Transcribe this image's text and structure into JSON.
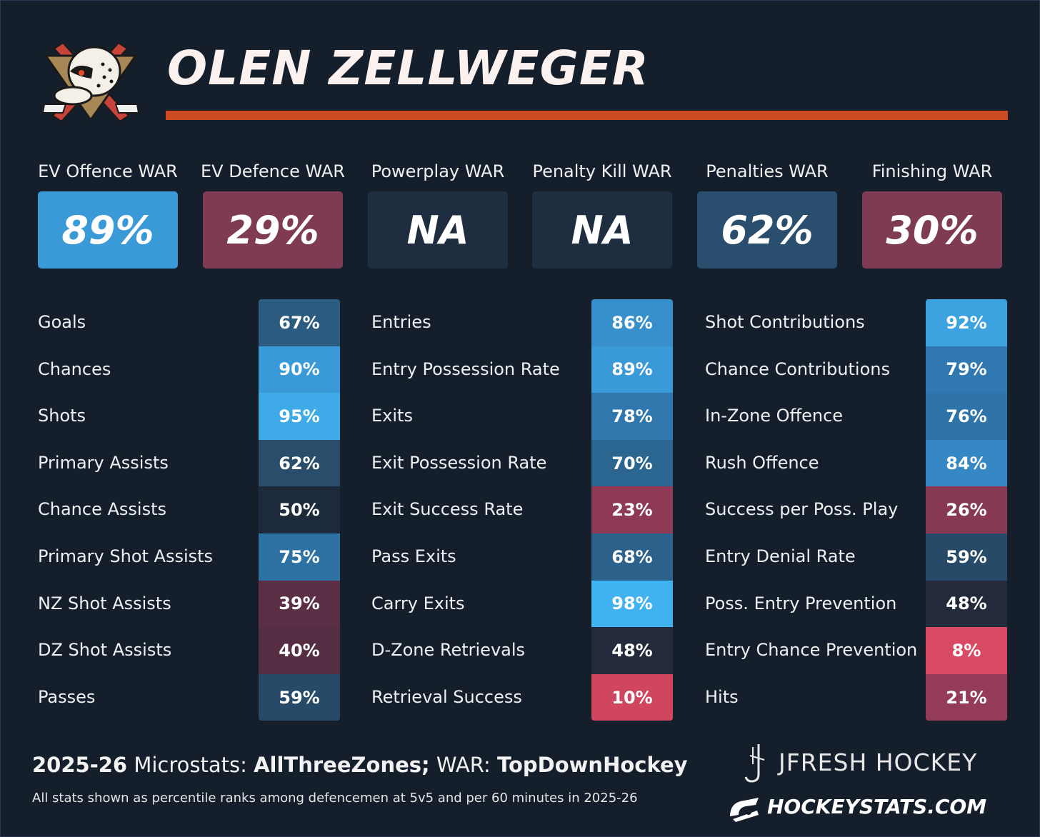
{
  "header": {
    "player_name": "OLEN ZELLWEGER",
    "logo_icon": "anaheim-ducks-logo",
    "accent_color": "#cc4a22"
  },
  "war": [
    {
      "label": "EV Offence WAR",
      "value": "89%",
      "color": "#3a9ad8"
    },
    {
      "label": "EV Defence WAR",
      "value": "29%",
      "color": "#7e3b53"
    },
    {
      "label": "Powerplay WAR",
      "value": "NA",
      "color": "#1e2d40"
    },
    {
      "label": "Penalty Kill WAR",
      "value": "NA",
      "color": "#1e2d40"
    },
    {
      "label": "Penalties WAR",
      "value": "62%",
      "color": "#2a4e6d"
    },
    {
      "label": "Finishing WAR",
      "value": "30%",
      "color": "#7e3b53"
    }
  ],
  "columns": [
    {
      "rows": [
        {
          "label": "Goals",
          "value": "67%",
          "color": "#2c5b80"
        },
        {
          "label": "Chances",
          "value": "90%",
          "color": "#3a9ad8"
        },
        {
          "label": "Shots",
          "value": "95%",
          "color": "#3eabe8"
        },
        {
          "label": "Primary Assists",
          "value": "62%",
          "color": "#294d6b"
        },
        {
          "label": "Chance Assists",
          "value": "50%",
          "color": "#1d2a3c"
        },
        {
          "label": "Primary Shot Assists",
          "value": "75%",
          "color": "#2e72a4"
        },
        {
          "label": "NZ Shot Assists",
          "value": "39%",
          "color": "#5b2f46"
        },
        {
          "label": "DZ Shot Assists",
          "value": "40%",
          "color": "#562e44"
        },
        {
          "label": "Passes",
          "value": "59%",
          "color": "#264a68"
        }
      ]
    },
    {
      "rows": [
        {
          "label": "Entries",
          "value": "86%",
          "color": "#3790cc"
        },
        {
          "label": "Entry Possession Rate",
          "value": "89%",
          "color": "#3a9ad8"
        },
        {
          "label": "Exits",
          "value": "78%",
          "color": "#2f77ad"
        },
        {
          "label": "Exit Possession Rate",
          "value": "70%",
          "color": "#2b6690"
        },
        {
          "label": "Exit Success Rate",
          "value": "23%",
          "color": "#8e3a55"
        },
        {
          "label": "Pass Exits",
          "value": "68%",
          "color": "#2b618a"
        },
        {
          "label": "Carry Exits",
          "value": "98%",
          "color": "#40b2ef"
        },
        {
          "label": "D-Zone Retrievals",
          "value": "48%",
          "color": "#232a3b"
        },
        {
          "label": "Retrieval Success",
          "value": "10%",
          "color": "#d0465f"
        }
      ]
    },
    {
      "rows": [
        {
          "label": "Shot Contributions",
          "value": "92%",
          "color": "#3ca3e0"
        },
        {
          "label": "Chance Contributions",
          "value": "79%",
          "color": "#2f78b0"
        },
        {
          "label": "In-Zone Offence",
          "value": "76%",
          "color": "#2e74a8"
        },
        {
          "label": "Rush Offence",
          "value": "84%",
          "color": "#3588c4"
        },
        {
          "label": "Success per Poss. Play",
          "value": "26%",
          "color": "#873952"
        },
        {
          "label": "Entry Denial Rate",
          "value": "59%",
          "color": "#264a68"
        },
        {
          "label": "Poss. Entry Prevention",
          "value": "48%",
          "color": "#232a3b"
        },
        {
          "label": "Entry Chance Prevention",
          "value": "8%",
          "color": "#d84a63"
        },
        {
          "label": "Hits",
          "value": "21%",
          "color": "#933b57"
        }
      ]
    }
  ],
  "footer": {
    "season": "2025-26",
    "microstats_label": "Microstats:",
    "microstats_source": "AllThreeZones;",
    "war_label": "WAR:",
    "war_source": "TopDownHockey",
    "note": "All stats shown as percentile ranks among defencemen at 5v5 and per 60 minutes in 2025-26",
    "brand_primary": "JFRESH HOCKEY",
    "brand_secondary": "HOCKEYSTATS.COM"
  }
}
